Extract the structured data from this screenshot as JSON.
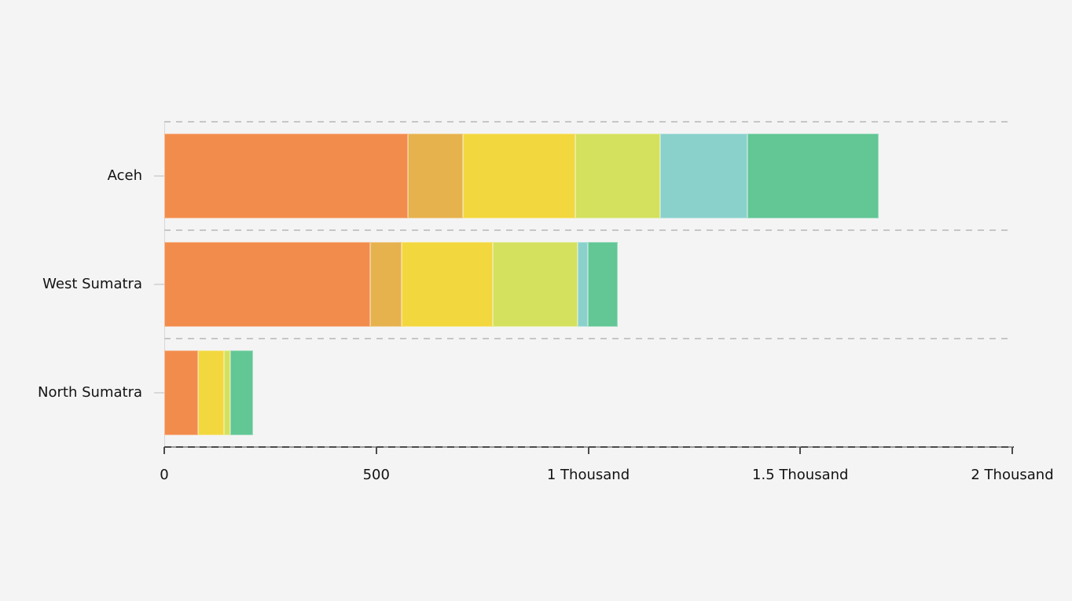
{
  "chart_data": {
    "type": "bar",
    "orientation": "horizontal",
    "stacked": true,
    "title": "",
    "xlabel": "",
    "ylabel": "",
    "legend": "none",
    "grid": "dashed horizontal category separators",
    "categories": [
      "Aceh",
      "West Sumatra",
      "North Sumatra"
    ],
    "series": [
      {
        "name": "series-1-orange",
        "color": "#F28C4D",
        "values": [
          575,
          485,
          80
        ]
      },
      {
        "name": "series-2-amber",
        "color": "#E6B24E",
        "values": [
          130,
          75,
          0
        ]
      },
      {
        "name": "series-3-yellow",
        "color": "#F2D73E",
        "values": [
          265,
          215,
          60
        ]
      },
      {
        "name": "series-4-lime",
        "color": "#D4E15F",
        "values": [
          200,
          200,
          15
        ]
      },
      {
        "name": "series-5-cyan",
        "color": "#8AD1CC",
        "values": [
          205,
          25,
          0
        ]
      },
      {
        "name": "series-6-green",
        "color": "#62C695",
        "values": [
          310,
          70,
          55
        ]
      }
    ],
    "xlim": [
      0,
      2000
    ],
    "x_ticks": [
      {
        "value": 0,
        "label": "0"
      },
      {
        "value": 500,
        "label": "500"
      },
      {
        "value": 1000,
        "label": "1 Thousand"
      },
      {
        "value": 1500,
        "label": "1.5 Thousand"
      },
      {
        "value": 2000,
        "label": "2 Thousand"
      }
    ]
  },
  "colors": {
    "background": "#F4F4F4",
    "axis_dark": "#4B4B4B",
    "axis_gap": "#9A9A9A",
    "gridline": "#C6C6C6",
    "text": "#121212",
    "left_line": "#D8D8D8"
  }
}
